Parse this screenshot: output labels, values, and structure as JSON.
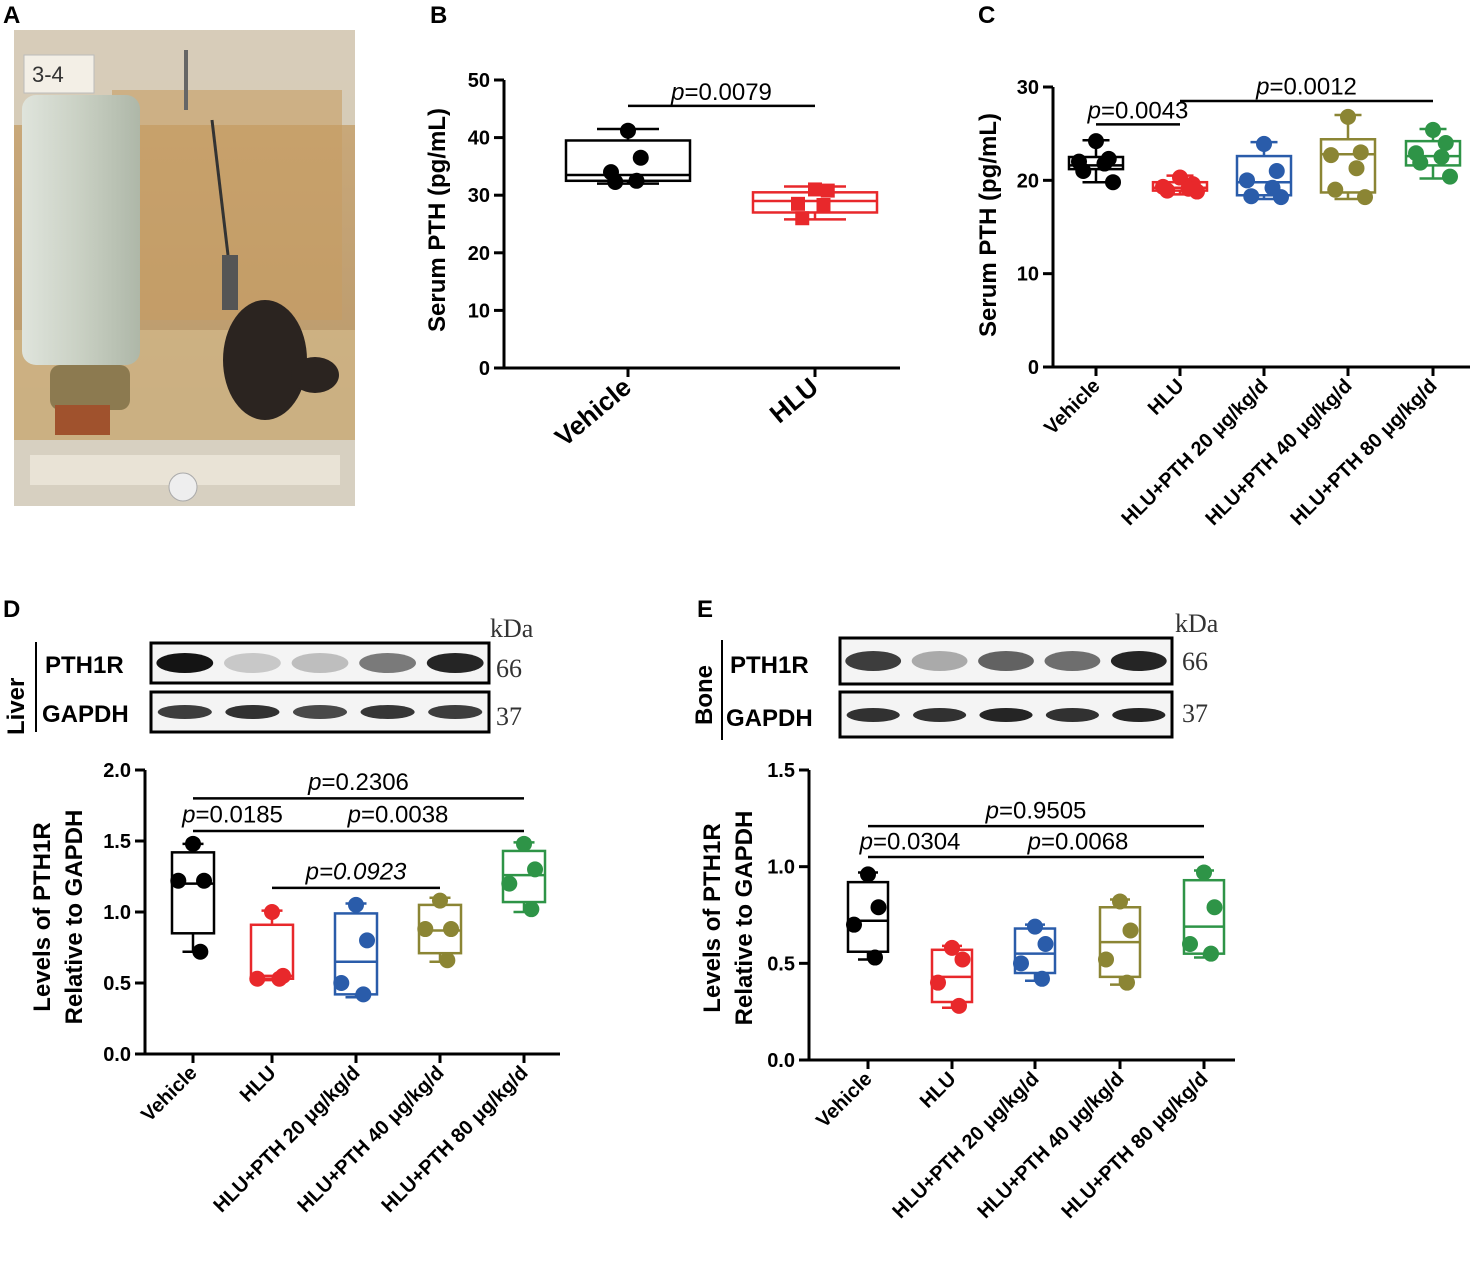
{
  "colors": {
    "Vehicle": "#000000",
    "HLU": "#e8282b",
    "HLU+PTH 20 μg/kg/d": "#2a5caa",
    "HLU+PTH 40 μg/kg/d": "#8b8534",
    "HLU+PTH 80 μg/kg/d": "#2e9447"
  },
  "panels": {
    "A": {
      "label": "A",
      "cage_tag": "3-4"
    },
    "B": {
      "label": "B"
    },
    "C": {
      "label": "C"
    },
    "D": {
      "label": "D",
      "tissue": "Liver",
      "bands": [
        "PTH1R",
        "GAPDH"
      ],
      "kda_header": "kDa",
      "kda": [
        "66",
        "37"
      ]
    },
    "E": {
      "label": "E",
      "tissue": "Bone",
      "bands": [
        "PTH1R",
        "GAPDH"
      ],
      "kda_header": "kDa",
      "kda": [
        "66",
        "37"
      ]
    }
  },
  "chart_data": [
    {
      "panel": "B",
      "type": "box",
      "ylabel": "Serum PTH (pg/mL)",
      "ylim": [
        0,
        50
      ],
      "yticks": [
        0,
        10,
        20,
        30,
        40,
        50
      ],
      "categories": [
        "Vehicle",
        "HLU"
      ],
      "boxes": [
        {
          "q1": 32.5,
          "median": 33.5,
          "q3": 39.5,
          "min": 32,
          "max": 41.5,
          "points": [
            41.2,
            36.5,
            34.0,
            32.5,
            32.3
          ]
        },
        {
          "q1": 27.0,
          "median": 29.0,
          "q3": 30.5,
          "min": 25.8,
          "max": 31.5,
          "points": [
            31.0,
            30.8,
            28.5,
            28.3,
            26.0
          ]
        }
      ],
      "annotations": [
        {
          "italic": "p",
          "text": "=0.0079",
          "from": 0,
          "to": 1,
          "y": 45.5,
          "ylabel": 46.5
        }
      ]
    },
    {
      "panel": "C",
      "type": "box",
      "ylabel": "Serum PTH (pg/mL)",
      "ylim": [
        0,
        30
      ],
      "yticks": [
        0,
        10,
        20,
        30
      ],
      "categories": [
        "Vehicle",
        "HLU",
        "HLU+PTH 20 μg/kg/d",
        "HLU+PTH 40 μg/kg/d",
        "HLU+PTH 80 μg/kg/d"
      ],
      "boxes": [
        {
          "q1": 21.2,
          "median": 21.6,
          "q3": 22.5,
          "min": 19.8,
          "max": 24.3,
          "points": [
            24.2,
            22.3,
            22.0,
            21.8,
            21.0,
            19.8
          ]
        },
        {
          "q1": 18.9,
          "median": 19.2,
          "q3": 19.8,
          "min": 18.5,
          "max": 20.5,
          "points": [
            20.3,
            19.6,
            19.3,
            19.1,
            18.9,
            18.8
          ]
        },
        {
          "q1": 18.4,
          "median": 19.8,
          "q3": 22.6,
          "min": 18.0,
          "max": 24.1,
          "points": [
            23.9,
            21.0,
            20.0,
            19.2,
            18.3,
            18.2
          ]
        },
        {
          "q1": 18.7,
          "median": 22.8,
          "q3": 24.4,
          "min": 18.0,
          "max": 27.0,
          "points": [
            26.8,
            23.0,
            22.7,
            21.3,
            19.0,
            18.2
          ]
        },
        {
          "q1": 21.6,
          "median": 22.6,
          "q3": 24.2,
          "min": 20.2,
          "max": 25.5,
          "points": [
            25.4,
            24.0,
            22.9,
            22.5,
            21.9,
            20.4
          ]
        }
      ],
      "annotations": [
        {
          "italic": "p",
          "text": "=0.0043",
          "from": 0,
          "to": 1,
          "y": 26.0,
          "ylabel": 26.6
        },
        {
          "italic": "p",
          "text": "=0.0012",
          "from": 1,
          "to": 4,
          "y": 28.5,
          "ylabel": 29.2
        }
      ]
    },
    {
      "panel": "D",
      "type": "box",
      "ylabel": [
        "Levels of PTH1R",
        "Relative to GAPDH"
      ],
      "ylim": [
        0,
        2.0
      ],
      "yticks": [
        0.0,
        0.5,
        1.0,
        1.5,
        2.0
      ],
      "categories": [
        "Vehicle",
        "HLU",
        "HLU+PTH 20 μg/kg/d",
        "HLU+PTH 40 μg/kg/d",
        "HLU+PTH 80 μg/kg/d"
      ],
      "boxes": [
        {
          "q1": 0.85,
          "median": 1.2,
          "q3": 1.42,
          "min": 0.72,
          "max": 1.48,
          "points": [
            1.48,
            1.22,
            1.22,
            0.72
          ]
        },
        {
          "q1": 0.53,
          "median": 0.55,
          "q3": 0.91,
          "min": 0.52,
          "max": 1.01,
          "points": [
            1.0,
            0.55,
            0.53,
            0.53
          ]
        },
        {
          "q1": 0.42,
          "median": 0.65,
          "q3": 0.99,
          "min": 0.4,
          "max": 1.06,
          "points": [
            1.05,
            0.8,
            0.5,
            0.42
          ]
        },
        {
          "q1": 0.71,
          "median": 0.87,
          "q3": 1.05,
          "min": 0.65,
          "max": 1.1,
          "points": [
            1.08,
            0.88,
            0.88,
            0.66
          ]
        },
        {
          "q1": 1.07,
          "median": 1.26,
          "q3": 1.43,
          "min": 1.0,
          "max": 1.49,
          "points": [
            1.48,
            1.3,
            1.2,
            1.02
          ]
        }
      ],
      "annotations": [
        {
          "italic": "p",
          "text": "=0.2306",
          "from": 0,
          "to": 4,
          "y": 1.8,
          "ylabel": 1.86
        },
        {
          "italic": "p",
          "text": "=0.0185",
          "from": 0,
          "to": 1,
          "y": 1.57,
          "ylabel": 1.63
        },
        {
          "italic": "p",
          "text": "=0.0038",
          "from": 1,
          "to": 4,
          "y": 1.57,
          "ylabel": 1.63
        },
        {
          "italic": "p",
          "text": "=0.0923",
          "from": 1,
          "to": 3,
          "y": 1.17,
          "ylabel": 1.23,
          "all_italic": true
        }
      ]
    },
    {
      "panel": "E",
      "type": "box",
      "ylabel": [
        "Levels of PTH1R",
        "Relative to GAPDH"
      ],
      "ylim": [
        0,
        1.5
      ],
      "yticks": [
        0.0,
        0.5,
        1.0,
        1.5
      ],
      "categories": [
        "Vehicle",
        "HLU",
        "HLU+PTH 20 μg/kg/d",
        "HLU+PTH 40 μg/kg/d",
        "HLU+PTH 80 μg/kg/d"
      ],
      "boxes": [
        {
          "q1": 0.56,
          "median": 0.72,
          "q3": 0.92,
          "min": 0.52,
          "max": 0.97,
          "points": [
            0.96,
            0.79,
            0.7,
            0.53
          ]
        },
        {
          "q1": 0.3,
          "median": 0.43,
          "q3": 0.57,
          "min": 0.27,
          "max": 0.59,
          "points": [
            0.58,
            0.52,
            0.4,
            0.28
          ]
        },
        {
          "q1": 0.45,
          "median": 0.55,
          "q3": 0.68,
          "min": 0.41,
          "max": 0.7,
          "points": [
            0.69,
            0.6,
            0.5,
            0.42
          ]
        },
        {
          "q1": 0.43,
          "median": 0.61,
          "q3": 0.79,
          "min": 0.39,
          "max": 0.83,
          "points": [
            0.82,
            0.67,
            0.52,
            0.4
          ]
        },
        {
          "q1": 0.55,
          "median": 0.69,
          "q3": 0.93,
          "min": 0.53,
          "max": 0.98,
          "points": [
            0.97,
            0.79,
            0.6,
            0.55
          ]
        }
      ],
      "annotations": [
        {
          "italic": "p",
          "text": "=0.9505",
          "from": 0,
          "to": 4,
          "y": 1.21,
          "ylabel": 1.25
        },
        {
          "italic": "p",
          "text": "=0.0304",
          "from": 0,
          "to": 1,
          "y": 1.05,
          "ylabel": 1.09
        },
        {
          "italic": "p",
          "text": "=0.0068",
          "from": 1,
          "to": 4,
          "y": 1.05,
          "ylabel": 1.09
        }
      ]
    }
  ]
}
